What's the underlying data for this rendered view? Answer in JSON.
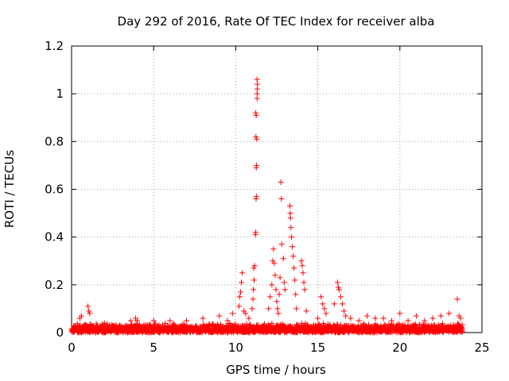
{
  "chart_data": {
    "type": "scatter",
    "title": "Day 292 of 2016, Rate Of TEC Index for receiver alba",
    "xlabel": "GPS time / hours",
    "ylabel": "ROTI / TECUs",
    "xlim": [
      0,
      25
    ],
    "ylim": [
      0,
      1.2
    ],
    "xticks": [
      0,
      5,
      10,
      15,
      20,
      25
    ],
    "yticks": [
      0,
      0.2,
      0.4,
      0.6,
      0.8,
      1,
      1.2
    ],
    "grid": true,
    "marker": "+",
    "series": [
      {
        "name": "ROTI",
        "color": "#ff0000",
        "baseline": {
          "x_range": [
            0,
            23.8
          ],
          "y_range": [
            0.0,
            0.04
          ]
        },
        "points": [
          [
            0.5,
            0.06
          ],
          [
            0.6,
            0.07
          ],
          [
            1.0,
            0.11
          ],
          [
            1.05,
            0.09
          ],
          [
            1.1,
            0.08
          ],
          [
            2.0,
            0.04
          ],
          [
            3.6,
            0.05
          ],
          [
            3.9,
            0.06
          ],
          [
            4.0,
            0.05
          ],
          [
            5.0,
            0.05
          ],
          [
            6.0,
            0.05
          ],
          [
            7.0,
            0.05
          ],
          [
            8.0,
            0.06
          ],
          [
            9.0,
            0.07
          ],
          [
            9.5,
            0.05
          ],
          [
            9.8,
            0.08
          ],
          [
            10.2,
            0.11
          ],
          [
            10.25,
            0.15
          ],
          [
            10.3,
            0.17
          ],
          [
            10.35,
            0.21
          ],
          [
            10.4,
            0.25
          ],
          [
            10.5,
            0.09
          ],
          [
            10.6,
            0.08
          ],
          [
            10.8,
            0.06
          ],
          [
            11.1,
            0.27
          ],
          [
            11.15,
            0.28
          ],
          [
            11.12,
            0.22
          ],
          [
            11.08,
            0.18
          ],
          [
            11.05,
            0.14
          ],
          [
            11.0,
            0.1
          ],
          [
            11.2,
            0.41
          ],
          [
            11.22,
            0.42
          ],
          [
            11.24,
            0.56
          ],
          [
            11.26,
            0.57
          ],
          [
            11.25,
            0.69
          ],
          [
            11.27,
            0.7
          ],
          [
            11.23,
            0.82
          ],
          [
            11.28,
            0.81
          ],
          [
            11.22,
            0.92
          ],
          [
            11.25,
            0.91
          ],
          [
            11.3,
            0.98
          ],
          [
            11.3,
            1.0
          ],
          [
            11.31,
            1.02
          ],
          [
            11.32,
            1.04
          ],
          [
            11.3,
            1.06
          ],
          [
            12.0,
            0.1
          ],
          [
            12.1,
            0.15
          ],
          [
            12.2,
            0.2
          ],
          [
            12.25,
            0.3
          ],
          [
            12.3,
            0.35
          ],
          [
            12.35,
            0.29
          ],
          [
            12.4,
            0.24
          ],
          [
            12.45,
            0.18
          ],
          [
            12.5,
            0.13
          ],
          [
            12.55,
            0.1
          ],
          [
            12.6,
            0.08
          ],
          [
            12.65,
            0.16
          ],
          [
            12.7,
            0.23
          ],
          [
            12.75,
            0.63
          ],
          [
            12.78,
            0.56
          ],
          [
            12.8,
            0.37
          ],
          [
            12.9,
            0.31
          ],
          [
            12.95,
            0.21
          ],
          [
            13.0,
            0.18
          ],
          [
            13.3,
            0.53
          ],
          [
            13.32,
            0.5
          ],
          [
            13.34,
            0.48
          ],
          [
            13.36,
            0.44
          ],
          [
            13.4,
            0.4
          ],
          [
            13.45,
            0.36
          ],
          [
            13.5,
            0.32
          ],
          [
            13.55,
            0.27
          ],
          [
            13.6,
            0.22
          ],
          [
            13.65,
            0.16
          ],
          [
            13.7,
            0.1
          ],
          [
            14.0,
            0.3
          ],
          [
            14.05,
            0.28
          ],
          [
            14.1,
            0.25
          ],
          [
            14.15,
            0.21
          ],
          [
            14.2,
            0.18
          ],
          [
            14.3,
            0.09
          ],
          [
            15.0,
            0.06
          ],
          [
            15.2,
            0.15
          ],
          [
            15.3,
            0.12
          ],
          [
            15.4,
            0.1
          ],
          [
            15.5,
            0.08
          ],
          [
            16.0,
            0.12
          ],
          [
            16.2,
            0.21
          ],
          [
            16.25,
            0.19
          ],
          [
            16.3,
            0.18
          ],
          [
            16.4,
            0.15
          ],
          [
            16.5,
            0.12
          ],
          [
            16.6,
            0.09
          ],
          [
            16.7,
            0.07
          ],
          [
            17.0,
            0.06
          ],
          [
            17.5,
            0.05
          ],
          [
            18.0,
            0.07
          ],
          [
            18.5,
            0.06
          ],
          [
            19.0,
            0.06
          ],
          [
            19.5,
            0.05
          ],
          [
            20.0,
            0.08
          ],
          [
            20.5,
            0.05
          ],
          [
            21.0,
            0.07
          ],
          [
            21.5,
            0.05
          ],
          [
            22.0,
            0.06
          ],
          [
            22.5,
            0.07
          ],
          [
            23.0,
            0.08
          ],
          [
            23.5,
            0.14
          ],
          [
            23.6,
            0.07
          ],
          [
            23.7,
            0.06
          ]
        ]
      }
    ]
  }
}
